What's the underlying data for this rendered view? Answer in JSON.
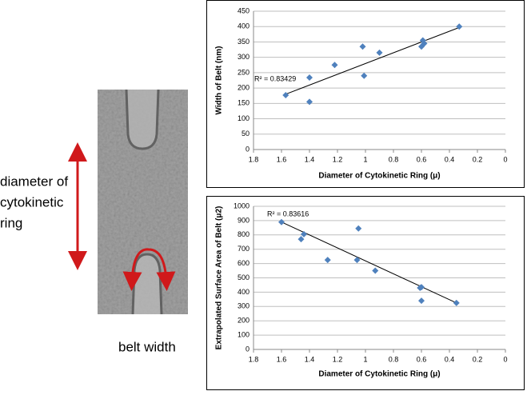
{
  "image_labels": {
    "diameter": [
      "diameter of",
      "cytokinetic",
      "ring"
    ],
    "width": "belt width"
  },
  "chart_data": [
    {
      "type": "scatter",
      "x_label": "Diameter of Cytokinetic Ring (μ)",
      "y_label": "Width of Belt (nm)",
      "annotation": "R² = 0.83429",
      "color": "#4f81bd",
      "grid": true,
      "x": [
        1.57,
        1.4,
        1.4,
        1.22,
        1.02,
        1.01,
        0.9,
        0.6,
        0.59,
        0.58,
        0.33
      ],
      "y": [
        177,
        155,
        234,
        275,
        335,
        240,
        315,
        335,
        355,
        345,
        400
      ],
      "trendline": {
        "x": [
          1.57,
          0.33
        ],
        "y": [
          180,
          397
        ]
      },
      "xlim": [
        1.8,
        0
      ],
      "xticks": [
        1.8,
        1.6,
        1.4,
        1.2,
        1,
        0.8,
        0.6,
        0.4,
        0.2,
        0
      ],
      "ylim": [
        0,
        450
      ],
      "yticks": [
        0,
        50,
        100,
        150,
        200,
        250,
        300,
        350,
        400,
        450
      ]
    },
    {
      "type": "scatter",
      "x_label": "Diameter of Cytokinetic Ring (μ)",
      "y_label": "Extrapolated Surface Area of Belt (μ2)",
      "annotation": "R² = 0.83616",
      "color": "#4f81bd",
      "grid": true,
      "x": [
        1.6,
        1.44,
        1.46,
        1.27,
        1.05,
        1.06,
        0.93,
        0.61,
        0.6,
        0.6,
        0.35
      ],
      "y": [
        890,
        805,
        770,
        625,
        845,
        625,
        550,
        430,
        435,
        340,
        325
      ],
      "trendline": {
        "x": [
          1.6,
          0.35
        ],
        "y": [
          890,
          325
        ]
      },
      "xlim": [
        1.8,
        0
      ],
      "xticks": [
        1.8,
        1.6,
        1.4,
        1.2,
        1,
        0.8,
        0.6,
        0.4,
        0.2,
        0
      ],
      "ylim": [
        0,
        1000
      ],
      "yticks": [
        0,
        100,
        200,
        300,
        400,
        500,
        600,
        700,
        800,
        900,
        1000
      ]
    }
  ]
}
